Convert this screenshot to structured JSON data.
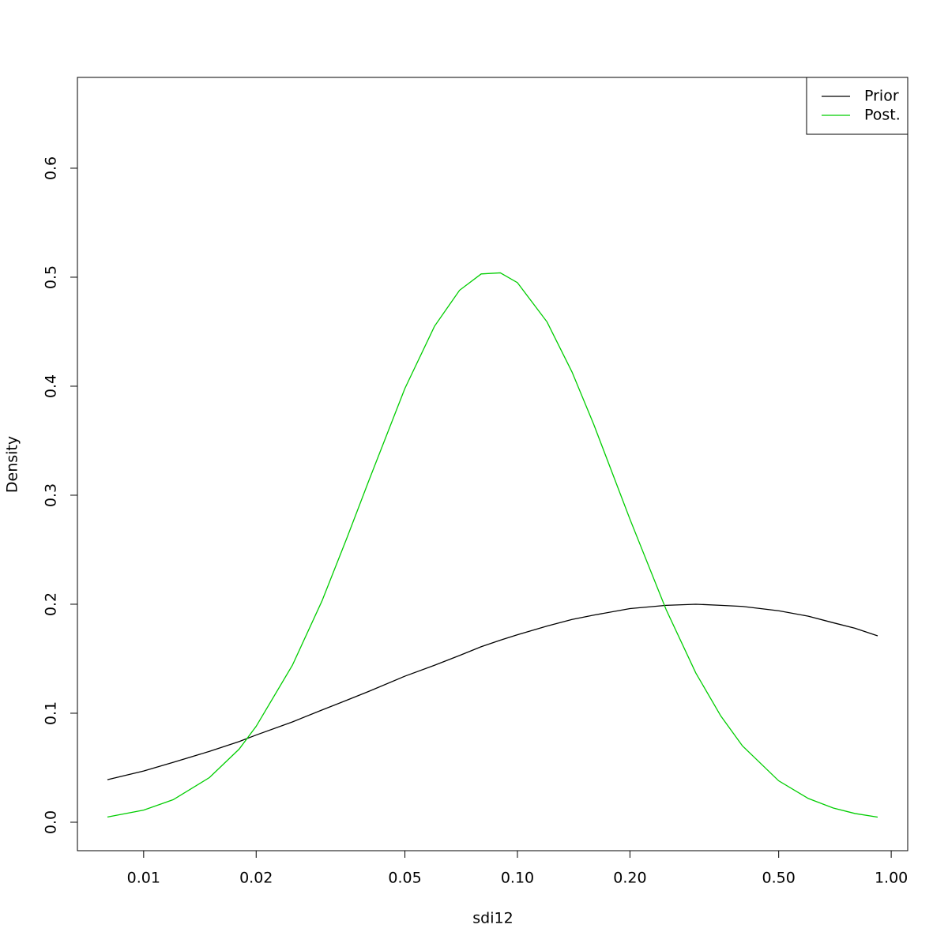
{
  "chart_data": {
    "type": "line",
    "x_label": "sdi12",
    "y_label": "Density",
    "x": [
      0.008,
      0.01,
      0.012,
      0.015,
      0.018,
      0.02,
      0.025,
      0.03,
      0.035,
      0.04,
      0.05,
      0.06,
      0.07,
      0.08,
      0.09,
      0.1,
      0.12,
      0.14,
      0.16,
      0.2,
      0.25,
      0.3,
      0.35,
      0.4,
      0.5,
      0.6,
      0.7,
      0.8,
      0.92
    ],
    "series": [
      {
        "name": "Prior",
        "color": "#000000",
        "values": [
          0.039,
          0.047,
          0.055,
          0.065,
          0.074,
          0.08,
          0.092,
          0.103,
          0.112,
          0.12,
          0.134,
          0.144,
          0.153,
          0.161,
          0.167,
          0.172,
          0.18,
          0.186,
          0.19,
          0.196,
          0.199,
          0.2,
          0.199,
          0.198,
          0.194,
          0.189,
          0.183,
          0.178,
          0.171
        ]
      },
      {
        "name": "Post.",
        "color": "#00cd00",
        "values": [
          0.0048,
          0.0111,
          0.0207,
          0.041,
          0.067,
          0.088,
          0.144,
          0.203,
          0.261,
          0.313,
          0.398,
          0.455,
          0.488,
          0.503,
          0.504,
          0.495,
          0.459,
          0.413,
          0.365,
          0.278,
          0.195,
          0.137,
          0.0975,
          0.07,
          0.038,
          0.0218,
          0.013,
          0.008,
          0.0047
        ]
      }
    ],
    "xlog": true,
    "xlim": [
      0.00665,
      1.107
    ],
    "ylim": [
      -0.0261,
      0.6833
    ],
    "xticks": [
      0.01,
      0.02,
      0.05,
      {
        "value": 0.1,
        "label": "0.10"
      },
      {
        "value": 0.2,
        "label": "0.20"
      },
      {
        "value": 0.5,
        "label": "0.50"
      },
      {
        "value": 1,
        "label": "1.00"
      }
    ],
    "yticks": [
      {
        "value": 0,
        "label": "0.0"
      },
      0.1,
      0.2,
      0.3,
      0.4,
      0.5,
      0.6
    ],
    "legend": "top-right"
  }
}
